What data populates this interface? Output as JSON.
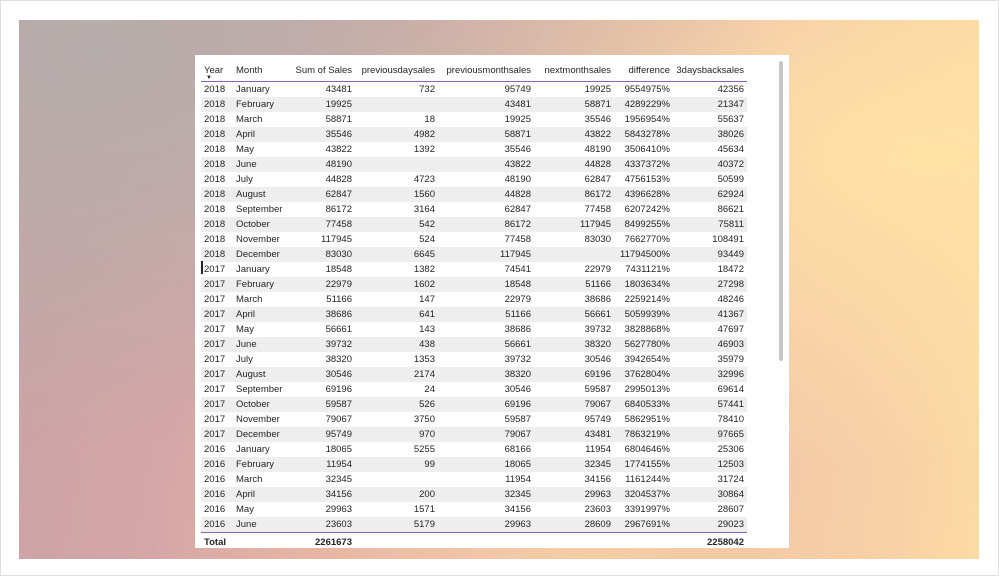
{
  "table": {
    "headers": [
      "Year",
      "Month",
      "Sum of Sales",
      "previousdaysales",
      "previousmonthsales",
      "nextmonthsales",
      "difference",
      "3daysbacksales"
    ],
    "rows": [
      [
        "2018",
        "January",
        "43481",
        "732",
        "95749",
        "19925",
        "9554975%",
        "42356"
      ],
      [
        "2018",
        "February",
        "19925",
        "",
        "43481",
        "58871",
        "4289229%",
        "21347"
      ],
      [
        "2018",
        "March",
        "58871",
        "18",
        "19925",
        "35546",
        "1956954%",
        "55637"
      ],
      [
        "2018",
        "April",
        "35546",
        "4982",
        "58871",
        "43822",
        "5843278%",
        "38026"
      ],
      [
        "2018",
        "May",
        "43822",
        "1392",
        "35546",
        "48190",
        "3506410%",
        "45634"
      ],
      [
        "2018",
        "June",
        "48190",
        "",
        "43822",
        "44828",
        "4337372%",
        "40372"
      ],
      [
        "2018",
        "July",
        "44828",
        "4723",
        "48190",
        "62847",
        "4756153%",
        "50599"
      ],
      [
        "2018",
        "August",
        "62847",
        "1560",
        "44828",
        "86172",
        "4396628%",
        "62924"
      ],
      [
        "2018",
        "September",
        "86172",
        "3164",
        "62847",
        "77458",
        "6207242%",
        "86621"
      ],
      [
        "2018",
        "October",
        "77458",
        "542",
        "86172",
        "117945",
        "8499255%",
        "75811"
      ],
      [
        "2018",
        "November",
        "117945",
        "524",
        "77458",
        "83030",
        "7662770%",
        "108491"
      ],
      [
        "2018",
        "December",
        "83030",
        "6645",
        "117945",
        "",
        "11794500%",
        "93449"
      ],
      [
        "2017",
        "January",
        "18548",
        "1382",
        "74541",
        "22979",
        "7431121%",
        "18472"
      ],
      [
        "2017",
        "February",
        "22979",
        "1602",
        "18548",
        "51166",
        "1803634%",
        "27298"
      ],
      [
        "2017",
        "March",
        "51166",
        "147",
        "22979",
        "38686",
        "2259214%",
        "48246"
      ],
      [
        "2017",
        "April",
        "38686",
        "641",
        "51166",
        "56661",
        "5059939%",
        "41367"
      ],
      [
        "2017",
        "May",
        "56661",
        "143",
        "38686",
        "39732",
        "3828868%",
        "47697"
      ],
      [
        "2017",
        "June",
        "39732",
        "438",
        "56661",
        "38320",
        "5627780%",
        "46903"
      ],
      [
        "2017",
        "July",
        "38320",
        "1353",
        "39732",
        "30546",
        "3942654%",
        "35979"
      ],
      [
        "2017",
        "August",
        "30546",
        "2174",
        "38320",
        "69196",
        "3762804%",
        "32996"
      ],
      [
        "2017",
        "September",
        "69196",
        "24",
        "30546",
        "59587",
        "2995013%",
        "69614"
      ],
      [
        "2017",
        "October",
        "59587",
        "526",
        "69196",
        "79067",
        "6840533%",
        "57441"
      ],
      [
        "2017",
        "November",
        "79067",
        "3750",
        "59587",
        "95749",
        "5862951%",
        "78410"
      ],
      [
        "2017",
        "December",
        "95749",
        "970",
        "79067",
        "43481",
        "7863219%",
        "97665"
      ],
      [
        "2016",
        "January",
        "18065",
        "5255",
        "68166",
        "11954",
        "6804646%",
        "25306"
      ],
      [
        "2016",
        "February",
        "11954",
        "99",
        "18065",
        "32345",
        "1774155%",
        "12503"
      ],
      [
        "2016",
        "March",
        "32345",
        "",
        "11954",
        "34156",
        "1161244%",
        "31724"
      ],
      [
        "2016",
        "April",
        "34156",
        "200",
        "32345",
        "29963",
        "3204537%",
        "30864"
      ],
      [
        "2016",
        "May",
        "29963",
        "1571",
        "34156",
        "23603",
        "3391997%",
        "28607"
      ],
      [
        "2016",
        "June",
        "23603",
        "5179",
        "29963",
        "28609",
        "2967691%",
        "29023"
      ]
    ],
    "total": [
      "Total",
      "",
      "2261673",
      "",
      "",
      "",
      "",
      "2258042"
    ]
  }
}
